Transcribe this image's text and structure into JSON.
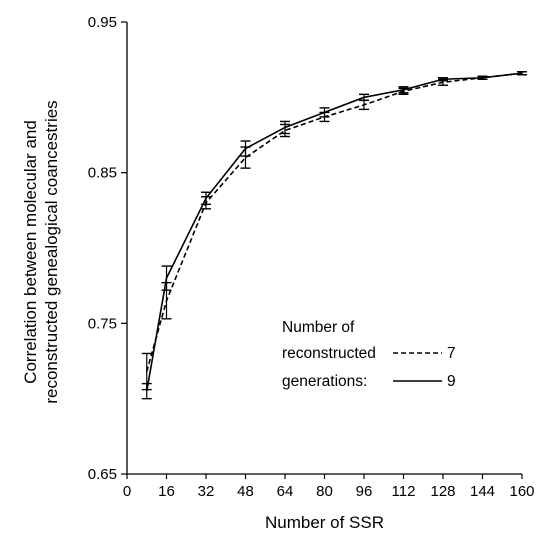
{
  "chart_data": {
    "type": "line",
    "title": "",
    "xlabel": "Number of SSR",
    "ylabel": [
      "Correlation between molecular and",
      "reconstructed genealogical coancestries"
    ],
    "xlim": [
      0,
      160
    ],
    "ylim": [
      0.65,
      0.95
    ],
    "x_ticks": [
      0,
      16,
      32,
      48,
      64,
      80,
      96,
      112,
      128,
      144,
      160
    ],
    "y_ticks": [
      0.65,
      0.75,
      0.85,
      0.95
    ],
    "y_tick_labels": [
      "0.65",
      "0.75",
      "0.85",
      "0.95"
    ],
    "grid": false,
    "legend": {
      "position": "bottom-right",
      "title": [
        "Number of",
        "reconstructed",
        "generations:"
      ]
    },
    "series": [
      {
        "name": "7",
        "style": "dashed",
        "x": [
          8,
          16,
          32,
          48,
          64,
          80,
          96,
          112,
          128,
          144,
          160
        ],
        "y": [
          0.718,
          0.765,
          0.83,
          0.86,
          0.878,
          0.887,
          0.895,
          0.904,
          0.91,
          0.913,
          0.916
        ],
        "err": [
          0.012,
          0.012,
          0.004,
          0.007,
          0.004,
          0.003,
          0.003,
          0.002,
          0.002,
          0.001,
          0.001
        ]
      },
      {
        "name": "9",
        "style": "solid",
        "x": [
          8,
          16,
          32,
          48,
          64,
          80,
          96,
          112,
          128,
          144,
          160
        ],
        "y": [
          0.705,
          0.78,
          0.833,
          0.866,
          0.88,
          0.89,
          0.9,
          0.905,
          0.912,
          0.913,
          0.916
        ],
        "err": [
          0.005,
          0.008,
          0.004,
          0.005,
          0.004,
          0.003,
          0.002,
          0.002,
          0.001,
          0.001,
          0.001
        ]
      }
    ]
  }
}
